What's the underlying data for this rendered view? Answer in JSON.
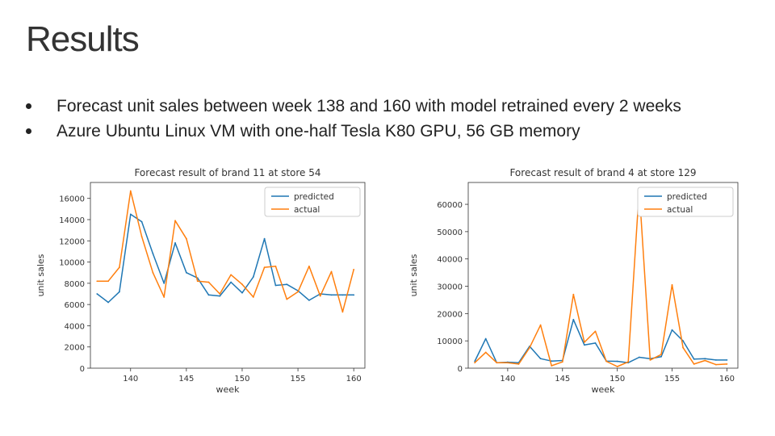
{
  "slide": {
    "title": "Results",
    "bullets": [
      "Forecast unit sales between week 138 and 160 with model retrained every 2 weeks",
      "Azure Ubuntu Linux VM with one-half Tesla K80 GPU, 56 GB memory"
    ]
  },
  "chart_data": [
    {
      "type": "line",
      "title": "Forecast result of brand 11 at store 54",
      "xlabel": "week",
      "ylabel": "unit sales",
      "xlim": [
        136.4,
        161
      ],
      "ylim": [
        0,
        17500
      ],
      "xticks": [
        140,
        145,
        150,
        155,
        160
      ],
      "yticks": [
        0,
        2000,
        4000,
        6000,
        8000,
        10000,
        12000,
        14000,
        16000
      ],
      "grid": false,
      "legend": "top-right",
      "x": [
        137,
        138,
        139,
        140,
        141,
        142,
        143,
        144,
        145,
        146,
        147,
        148,
        149,
        150,
        151,
        152,
        153,
        154,
        155,
        156,
        157,
        158,
        159,
        160
      ],
      "series": [
        {
          "name": "predicted",
          "color": "#1f77b4",
          "values": [
            7000,
            6200,
            7200,
            14500,
            13800,
            10800,
            8000,
            11800,
            9000,
            8500,
            6900,
            6800,
            8100,
            7100,
            8600,
            12200,
            7800,
            7900,
            7300,
            6400,
            7000,
            6900,
            6900,
            6900
          ]
        },
        {
          "name": "actual",
          "color": "#ff7f0e",
          "values": [
            8200,
            8200,
            9500,
            16700,
            12400,
            9000,
            6700,
            13900,
            12200,
            8200,
            8100,
            7000,
            8800,
            7900,
            6700,
            9500,
            9600,
            6500,
            7200,
            9600,
            6800,
            9100,
            5300,
            9300
          ]
        }
      ]
    },
    {
      "type": "line",
      "title": "Forecast result of brand 4 at store 129",
      "xlabel": "week",
      "ylabel": "unit sales",
      "xlim": [
        136.4,
        161
      ],
      "ylim": [
        0,
        68000
      ],
      "xticks": [
        140,
        145,
        150,
        155,
        160
      ],
      "yticks": [
        0,
        10000,
        20000,
        30000,
        40000,
        50000,
        60000
      ],
      "grid": false,
      "legend": "top-right",
      "x": [
        137,
        138,
        139,
        140,
        141,
        142,
        143,
        144,
        145,
        146,
        147,
        148,
        149,
        150,
        151,
        152,
        153,
        154,
        155,
        156,
        157,
        158,
        159,
        160
      ],
      "series": [
        {
          "name": "predicted",
          "color": "#1f77b4",
          "values": [
            2500,
            10800,
            2000,
            2200,
            2000,
            8000,
            3500,
            2600,
            2800,
            17800,
            8500,
            9200,
            2600,
            2500,
            2000,
            4000,
            3500,
            4200,
            14000,
            10000,
            3300,
            3500,
            3000,
            3000
          ]
        },
        {
          "name": "actual",
          "color": "#ff7f0e",
          "values": [
            2000,
            5800,
            2000,
            2000,
            1500,
            7500,
            15800,
            900,
            2300,
            27000,
            9500,
            13500,
            2500,
            600,
            2300,
            65500,
            3000,
            5000,
            30500,
            7500,
            1500,
            2800,
            1300,
            1500
          ]
        }
      ]
    }
  ]
}
